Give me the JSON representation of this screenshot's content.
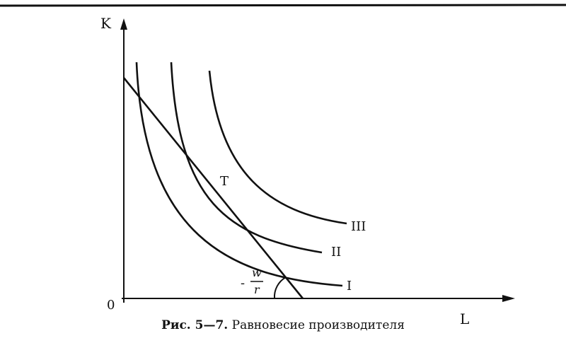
{
  "diagram": {
    "axes": {
      "y_label": "K",
      "x_label": "L",
      "origin_label": "0"
    },
    "curves": [
      {
        "id": "I",
        "label": "I"
      },
      {
        "id": "II",
        "label": "II"
      },
      {
        "id": "III",
        "label": "III"
      }
    ],
    "budget_line": {
      "slope_label": {
        "sign": "-",
        "numerator": "w",
        "denominator": "r"
      }
    },
    "equilibrium_point": {
      "label": "T"
    },
    "colors": {
      "ink": "#111111",
      "background": "#ffffff"
    }
  },
  "caption": {
    "figure_number": "Рис. 5—7.",
    "title": "Равновесие производителя"
  }
}
